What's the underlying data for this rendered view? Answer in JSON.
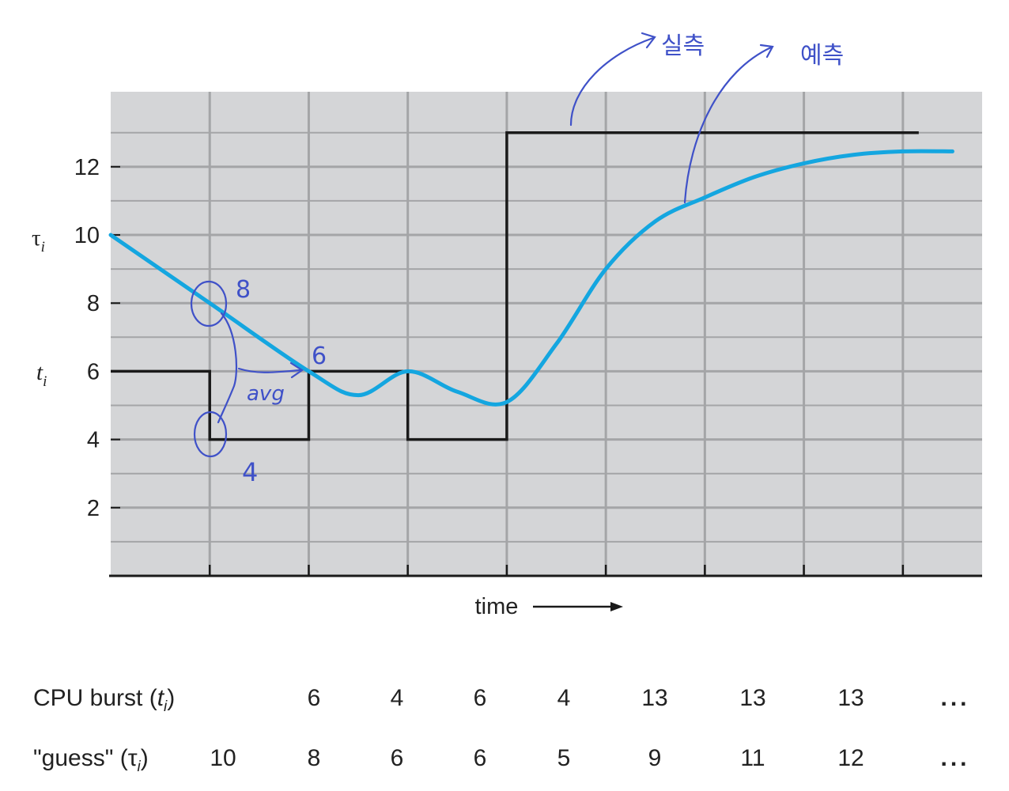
{
  "chart_data": {
    "type": "line",
    "xlabel": "time",
    "yticks": [
      2,
      4,
      6,
      8,
      10,
      12
    ],
    "ylim": [
      0,
      14.2
    ],
    "xlim": [
      0,
      8.8
    ],
    "grid": true,
    "y_symbols": {
      "tau": "τ",
      "t": "t",
      "sub": "i"
    },
    "series": [
      {
        "name": "CPU burst",
        "step_values": [
          6,
          4,
          6,
          4,
          13,
          13,
          13
        ]
      },
      {
        "name": "guess",
        "curve_points": [
          [
            0,
            10
          ],
          [
            1,
            8
          ],
          [
            2,
            6
          ],
          [
            2.5,
            5.3
          ],
          [
            3,
            6
          ],
          [
            3.5,
            5.4
          ],
          [
            4,
            5.1
          ],
          [
            4.5,
            6.8
          ],
          [
            5,
            9
          ],
          [
            5.5,
            10.4
          ],
          [
            6,
            11.1
          ],
          [
            6.5,
            11.7
          ],
          [
            7,
            12.1
          ],
          [
            7.5,
            12.35
          ],
          [
            8,
            12.45
          ],
          [
            8.5,
            12.45
          ]
        ]
      }
    ],
    "table": {
      "rows": [
        {
          "label_parts": [
            "CPU burst (",
            "t",
            "i",
            ")"
          ],
          "values": [
            "",
            "6",
            "4",
            "6",
            "4",
            "13",
            "13",
            "13",
            "..."
          ]
        },
        {
          "label_parts": [
            "\"guess\" (",
            "τ",
            "i",
            ")"
          ],
          "values": [
            "10",
            "8",
            "6",
            "6",
            "5",
            "9",
            "11",
            "12",
            "..."
          ]
        }
      ]
    },
    "annotations": {
      "actual": "실측",
      "predicted": "예측",
      "circle_top": "8",
      "circle_bottom": "4",
      "point_label": "6",
      "avg": "avg"
    },
    "colors": {
      "burst": "#1a1a1a",
      "guess": "#14a6e0",
      "plot_bg": "#d4d5d7",
      "grid": "#a4a5a7",
      "ink": "#3f51c8"
    }
  }
}
